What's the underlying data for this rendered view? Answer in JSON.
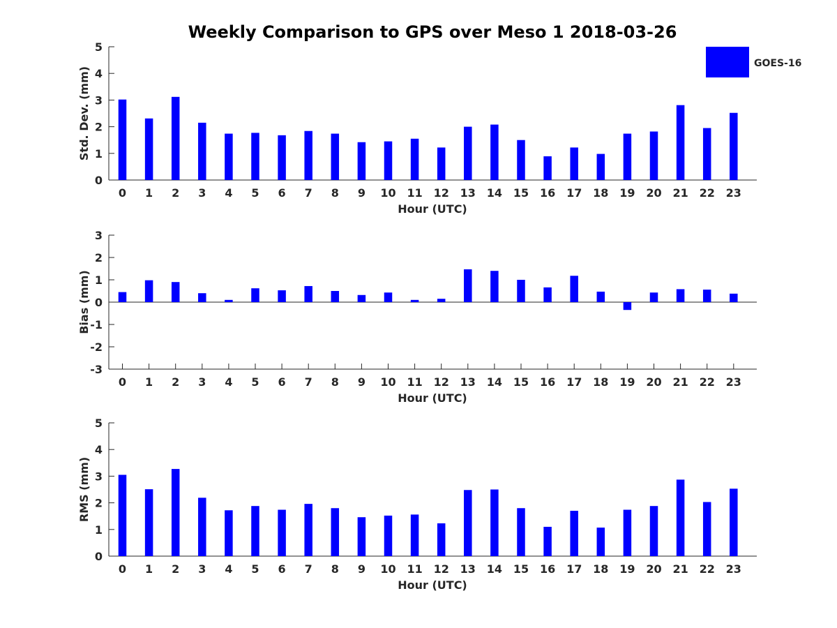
{
  "chart_data": {
    "type": "bar",
    "title": "Weekly Comparison to GPS over Meso 1 2018-03-26",
    "legend": {
      "label": "GOES-16",
      "color": "#0000ff",
      "placement": "top-right"
    },
    "categories": [
      "0",
      "1",
      "2",
      "3",
      "4",
      "5",
      "6",
      "7",
      "8",
      "9",
      "10",
      "11",
      "12",
      "13",
      "14",
      "15",
      "16",
      "17",
      "18",
      "19",
      "20",
      "21",
      "22",
      "23"
    ],
    "panels": [
      {
        "id": "std",
        "ylabel": "Std. Dev. (mm)",
        "xlabel": "Hour (UTC)",
        "ylim": [
          0,
          5
        ],
        "yticks": [
          0,
          1,
          2,
          3,
          4,
          5
        ],
        "zero_line": false,
        "series": [
          {
            "name": "GOES-16",
            "values": [
              3.02,
              2.31,
              3.12,
              2.15,
              1.74,
              1.77,
              1.68,
              1.84,
              1.74,
              1.42,
              1.45,
              1.55,
              1.22,
              2.0,
              2.08,
              1.5,
              0.89,
              1.22,
              0.98,
              1.74,
              1.82,
              2.81,
              1.95,
              2.52
            ]
          }
        ]
      },
      {
        "id": "bias",
        "ylabel": "Bias (mm)",
        "xlabel": "Hour (UTC)",
        "ylim": [
          -3,
          3
        ],
        "yticks": [
          -3,
          -2,
          -1,
          0,
          1,
          2,
          3
        ],
        "zero_line": true,
        "series": [
          {
            "name": "GOES-16",
            "values": [
              0.45,
              0.98,
              0.9,
              0.4,
              0.1,
              0.62,
              0.53,
              0.72,
              0.5,
              0.32,
              0.43,
              0.1,
              0.15,
              1.47,
              1.4,
              1.0,
              0.66,
              1.18,
              0.47,
              -0.35,
              0.43,
              0.58,
              0.56,
              0.38
            ]
          }
        ]
      },
      {
        "id": "rms",
        "ylabel": "RMS (mm)",
        "xlabel": "Hour (UTC)",
        "ylim": [
          0,
          5
        ],
        "yticks": [
          0,
          1,
          2,
          3,
          4,
          5
        ],
        "zero_line": false,
        "series": [
          {
            "name": "GOES-16",
            "values": [
              3.05,
              2.51,
              3.27,
              2.19,
              1.72,
              1.88,
              1.74,
              1.96,
              1.8,
              1.46,
              1.52,
              1.56,
              1.23,
              2.48,
              2.5,
              1.8,
              1.1,
              1.7,
              1.07,
              1.74,
              1.88,
              2.87,
              2.03,
              2.53
            ]
          }
        ]
      }
    ]
  }
}
